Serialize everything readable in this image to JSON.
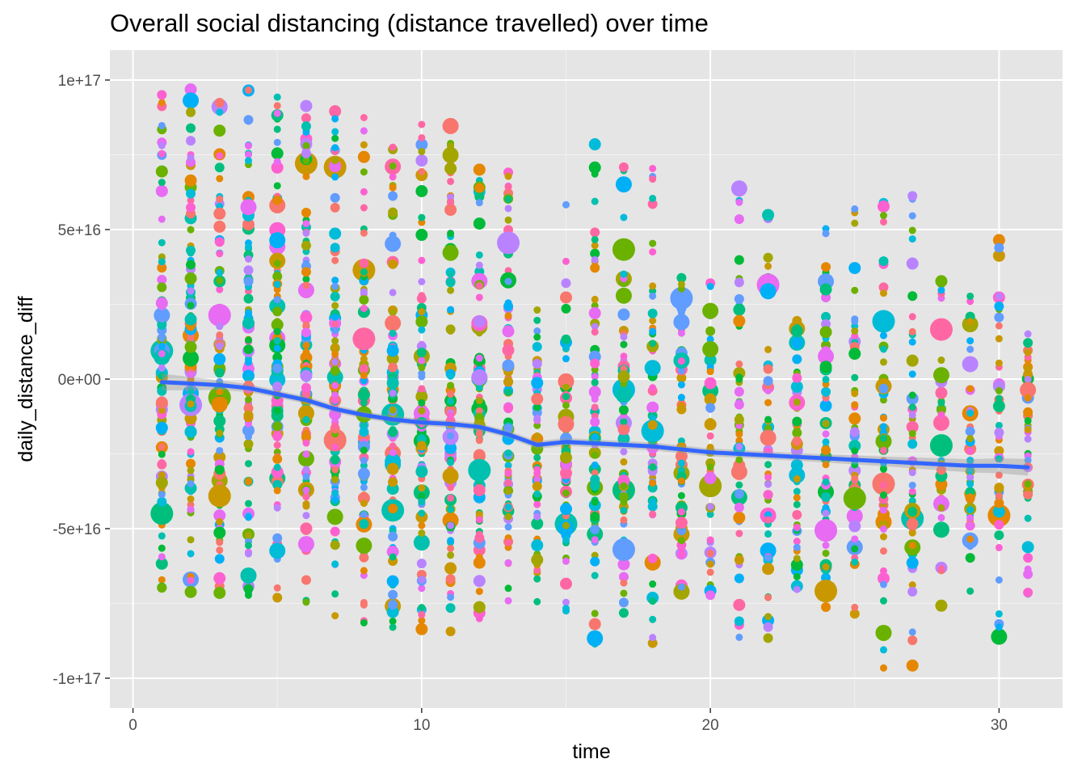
{
  "chart_data": {
    "type": "scatter",
    "title": "Overall social distancing (distance travelled) over time",
    "xlabel": "time",
    "ylabel": "daily_distance_diff",
    "xlim": [
      -0.8,
      32.2
    ],
    "ylim": [
      -1.1e+17,
      1.1e+17
    ],
    "x_ticks": [
      0,
      10,
      20,
      30
    ],
    "x_tick_labels": [
      "0",
      "10",
      "20",
      "30"
    ],
    "y_ticks": [
      1e+17,
      5e+16,
      0,
      -5e+16,
      -1e+17
    ],
    "y_tick_labels": [
      "1e+17",
      "5e+16",
      "0e+00",
      "-5e+16",
      "-1e+17"
    ],
    "grid": true,
    "legend": "none",
    "background": "#e5e5e5",
    "palette": [
      "#f8766d",
      "#e58700",
      "#c99800",
      "#a3a500",
      "#6bb100",
      "#00ba38",
      "#00bf7d",
      "#00c0af",
      "#00bcd8",
      "#00b0f6",
      "#619cff",
      "#b983ff",
      "#e76bf3",
      "#fd61d1",
      "#ff67a4"
    ],
    "smooth": {
      "color": "#3366ff",
      "band_color": "#999999",
      "x": [
        1,
        2,
        3,
        4,
        5,
        6,
        7,
        8,
        9,
        10,
        11,
        12,
        13,
        14,
        15,
        16,
        17,
        18,
        19,
        20,
        21,
        22,
        23,
        24,
        25,
        26,
        27,
        28,
        29,
        30,
        31
      ],
      "y": [
        -1000000000000000.0,
        -1500000000000000.0,
        -2000000000000000.0,
        -3000000000000000.0,
        -5000000000000000.0,
        -7000000000000000.0,
        -1e+16,
        -1.2e+16,
        -1.35e+16,
        -1.45e+16,
        -1.5e+16,
        -1.6e+16,
        -1.85e+16,
        -2.2e+16,
        -2.1e+16,
        -2.15e+16,
        -2.2e+16,
        -2.25e+16,
        -2.35e+16,
        -2.45e+16,
        -2.5e+16,
        -2.55e+16,
        -2.6e+16,
        -2.65e+16,
        -2.7e+16,
        -2.75e+16,
        -2.8e+16,
        -2.85e+16,
        -2.9e+16,
        -2.9e+16,
        -2.95e+16
      ],
      "band_halfwidth": [
        2800000000000000.0,
        2200000000000000.0,
        1600000000000000.0,
        1300000000000000.0,
        1200000000000000.0,
        1200000000000000.0,
        1200000000000000.0,
        1200000000000000.0,
        1200000000000000.0,
        1200000000000000.0,
        1200000000000000.0,
        1200000000000000.0,
        1200000000000000.0,
        1300000000000000.0,
        1300000000000000.0,
        1300000000000000.0,
        1300000000000000.0,
        1300000000000000.0,
        1300000000000000.0,
        1300000000000000.0,
        1300000000000000.0,
        1300000000000000.0,
        1300000000000000.0,
        1400000000000000.0,
        1500000000000000.0,
        1600000000000000.0,
        1800000000000000.0,
        2000000000000000.0,
        2200000000000000.0,
        2500000000000000.0,
        2800000000000000.0
      ]
    },
    "columns": [
      {
        "x": 1,
        "n": 110,
        "spread": 1.0
      },
      {
        "x": 2,
        "n": 110,
        "spread": 1.0
      },
      {
        "x": 3,
        "n": 105,
        "spread": 1.0
      },
      {
        "x": 4,
        "n": 105,
        "spread": 1.0
      },
      {
        "x": 5,
        "n": 105,
        "spread": 1.0
      },
      {
        "x": 6,
        "n": 105,
        "spread": 1.0
      },
      {
        "x": 7,
        "n": 110,
        "spread": 1.0
      },
      {
        "x": 8,
        "n": 100,
        "spread": 1.0
      },
      {
        "x": 9,
        "n": 95,
        "spread": 1.0
      },
      {
        "x": 10,
        "n": 100,
        "spread": 1.0
      },
      {
        "x": 11,
        "n": 100,
        "spread": 1.0
      },
      {
        "x": 12,
        "n": 90,
        "spread": 0.85
      },
      {
        "x": 13,
        "n": 85,
        "spread": 0.85
      },
      {
        "x": 14,
        "n": 60,
        "spread": 0.3
      },
      {
        "x": 15,
        "n": 65,
        "spread": 0.75
      },
      {
        "x": 16,
        "n": 75,
        "spread": 1.0
      },
      {
        "x": 17,
        "n": 80,
        "spread": 0.95
      },
      {
        "x": 18,
        "n": 70,
        "spread": 0.9
      },
      {
        "x": 19,
        "n": 60,
        "spread": 0.4
      },
      {
        "x": 20,
        "n": 50,
        "spread": 0.4
      },
      {
        "x": 21,
        "n": 55,
        "spread": 0.95
      },
      {
        "x": 22,
        "n": 55,
        "spread": 0.75
      },
      {
        "x": 23,
        "n": 55,
        "spread": 0.3
      },
      {
        "x": 24,
        "n": 60,
        "spread": 0.75
      },
      {
        "x": 25,
        "n": 60,
        "spread": 0.8
      },
      {
        "x": 26,
        "n": 65,
        "spread": 1.0
      },
      {
        "x": 27,
        "n": 55,
        "spread": 0.95
      },
      {
        "x": 28,
        "n": 50,
        "spread": 0.5
      },
      {
        "x": 29,
        "n": 55,
        "spread": 0.4
      },
      {
        "x": 30,
        "n": 50,
        "spread": 0.7
      },
      {
        "x": 31,
        "n": 45,
        "spread": 0.25
      }
    ]
  }
}
